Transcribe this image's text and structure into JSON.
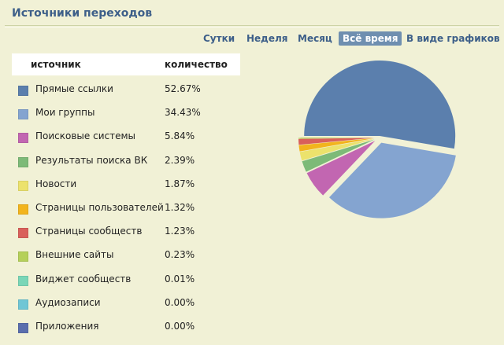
{
  "header": {
    "title": "Источники переходов"
  },
  "periods": [
    {
      "label": "Сутки",
      "active": false
    },
    {
      "label": "Неделя",
      "active": false
    },
    {
      "label": "Месяц",
      "active": false
    },
    {
      "label": "Всё время",
      "active": true
    },
    {
      "label": "В виде графиков",
      "active": false
    }
  ],
  "table": {
    "col_source": "источник",
    "col_count": "количество",
    "rows": [
      {
        "source": "Прямые ссылки",
        "value": "52.67%",
        "color": "#5b7fad"
      },
      {
        "source": "Мои группы",
        "value": "34.43%",
        "color": "#84a4d0"
      },
      {
        "source": "Поисковые системы",
        "value": "5.84%",
        "color": "#c266b1"
      },
      {
        "source": "Результаты поиска ВК",
        "value": "2.39%",
        "color": "#7dba78"
      },
      {
        "source": "Новости",
        "value": "1.87%",
        "color": "#ece26c"
      },
      {
        "source": "Страницы пользователей",
        "value": "1.32%",
        "color": "#f2b41d"
      },
      {
        "source": "Страницы сообществ",
        "value": "1.23%",
        "color": "#d9605b"
      },
      {
        "source": "Внешние сайты",
        "value": "0.23%",
        "color": "#b5d05a"
      },
      {
        "source": "Виджет сообществ",
        "value": "0.01%",
        "color": "#79d6b7"
      },
      {
        "source": "Аудиозаписи",
        "value": "0.00%",
        "color": "#6fc6d5"
      },
      {
        "source": "Приложения",
        "value": "0.00%",
        "color": "#5a6ead"
      }
    ]
  }
}
